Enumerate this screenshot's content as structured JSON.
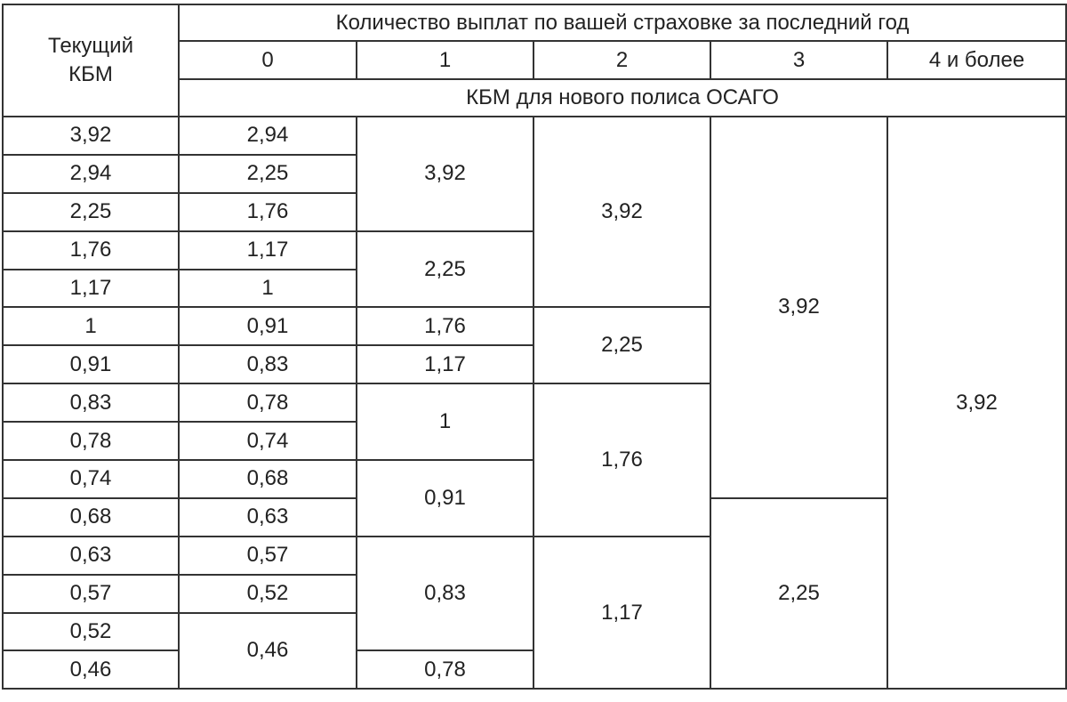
{
  "header": {
    "corner": "Текущий КБМ",
    "group": "Количество выплат по вашей страховке за последний год",
    "columns": [
      "0",
      "1",
      "2",
      "3",
      "4 и более"
    ],
    "subheader": "КБМ для нового полиса ОСАГО"
  },
  "table": {
    "rows": [
      [
        "3,92",
        "2,94",
        "3,92",
        "3,92",
        "3,92",
        "3,92"
      ],
      [
        "2,94",
        "2,25"
      ],
      [
        "2,25",
        "1,76"
      ],
      [
        "1,76",
        "1,17",
        "2,25"
      ],
      [
        "1,17",
        "1"
      ],
      [
        "1",
        "0,91",
        "1,76",
        "2,25"
      ],
      [
        "0,91",
        "0,83",
        "1,17"
      ],
      [
        "0,83",
        "0,78",
        "1",
        "1,76"
      ],
      [
        "0,78",
        "0,74"
      ],
      [
        "0,74",
        "0,68",
        "0,91"
      ],
      [
        "0,68",
        "0,63",
        "2,25"
      ],
      [
        "0,63",
        "0,57",
        "0,83",
        "1,17"
      ],
      [
        "0,57",
        "0,52"
      ],
      [
        "0,52",
        "0,46"
      ],
      [
        "0,46",
        "0,78"
      ]
    ]
  }
}
